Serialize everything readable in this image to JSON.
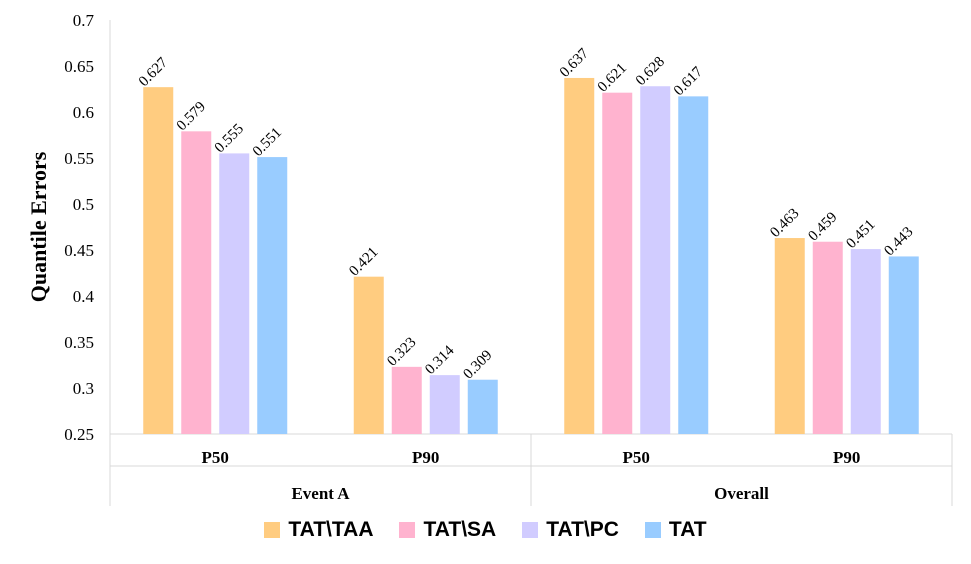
{
  "chart_data": {
    "type": "bar",
    "ylabel": "Quantile Errors",
    "ylim": [
      0.25,
      0.7
    ],
    "yticks": [
      "0.25",
      "0.3",
      "0.35",
      "0.4",
      "0.45",
      "0.5",
      "0.55",
      "0.6",
      "0.65",
      "0.7"
    ],
    "groups": [
      {
        "name": "Event A",
        "categories": [
          {
            "label": "P50",
            "values": [
              0.627,
              0.579,
              0.555,
              0.551
            ],
            "labels": [
              "0.627",
              "0.579",
              "0.555",
              "0.551"
            ]
          },
          {
            "label": "P90",
            "values": [
              0.421,
              0.323,
              0.314,
              0.309
            ],
            "labels": [
              "0.421",
              "0.323",
              "0.314",
              "0.309"
            ]
          }
        ]
      },
      {
        "name": "Overall",
        "categories": [
          {
            "label": "P50",
            "values": [
              0.637,
              0.621,
              0.628,
              0.617
            ],
            "labels": [
              "0.637",
              "0.621",
              "0.628",
              "0.617"
            ]
          },
          {
            "label": "P90",
            "values": [
              0.463,
              0.459,
              0.451,
              0.443
            ],
            "labels": [
              "0.463",
              "0.459",
              "0.451",
              "0.443"
            ]
          }
        ]
      }
    ],
    "series": [
      {
        "name": "TAT\\TAA",
        "color": "#FFCC80"
      },
      {
        "name": "TAT\\SA",
        "color": "#FFB3CF"
      },
      {
        "name": "TAT\\PC",
        "color": "#D1CCFF"
      },
      {
        "name": "TAT",
        "color": "#99CCFF"
      }
    ],
    "grid": false,
    "legend_position": "bottom"
  }
}
